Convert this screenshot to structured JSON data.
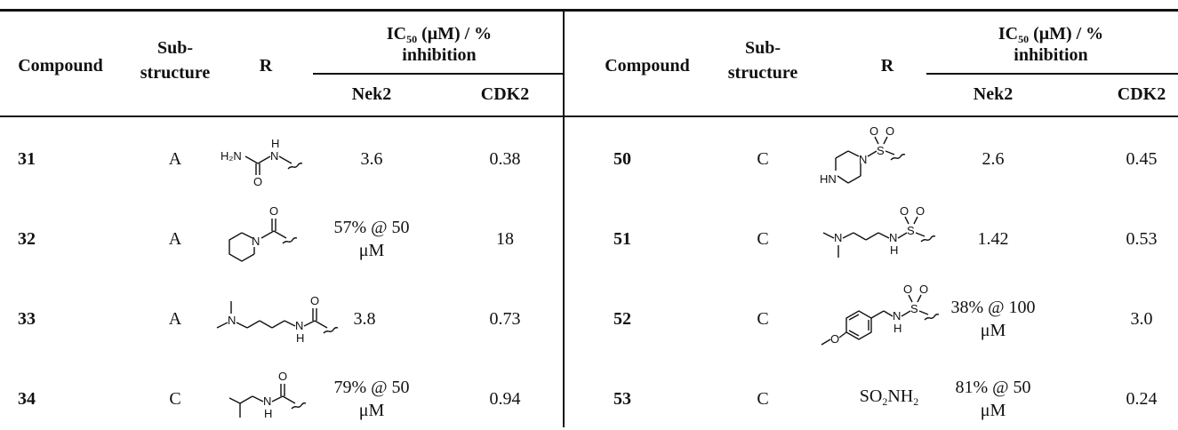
{
  "header": {
    "compound": "Compound",
    "substructure_top": "Sub-",
    "substructure_bottom": "structure",
    "r": "R",
    "ic50_prefix": "IC",
    "ic50_sub": "50",
    "ic50_suffix": " (μM) / %",
    "inhibition": "inhibition",
    "nek2": "Nek2",
    "cdk2": "CDK2"
  },
  "left_rows": [
    {
      "compound": "31",
      "substructure": "A",
      "r_structure": "urea",
      "nek2": "3.6",
      "cdk2": "0.38"
    },
    {
      "compound": "32",
      "substructure": "A",
      "r_structure": "piperidine-amide",
      "nek2_line1": "57% @ 50",
      "nek2_line2": "μM",
      "cdk2": "18"
    },
    {
      "compound": "33",
      "substructure": "A",
      "r_structure": "dimethylaminobutyl-amide",
      "nek2": "3.8",
      "cdk2": "0.73"
    },
    {
      "compound": "34",
      "substructure": "C",
      "r_structure": "isobutyl-amide",
      "nek2_line1": "79% @ 50",
      "nek2_line2": "μM",
      "cdk2": "0.94"
    }
  ],
  "right_rows": [
    {
      "compound": "50",
      "substructure": "C",
      "r_structure": "piperazine-sulfonyl",
      "nek2": "2.6",
      "cdk2": "0.45"
    },
    {
      "compound": "51",
      "substructure": "C",
      "r_structure": "dimethylaminopropyl-sulfonamide",
      "nek2": "1.42",
      "cdk2": "0.53"
    },
    {
      "compound": "52",
      "substructure": "C",
      "r_structure": "methoxybenzyl-sulfonamide",
      "nek2_line1": "38% @ 100",
      "nek2_line2": "μM",
      "cdk2": "3.0"
    },
    {
      "compound": "53",
      "substructure": "C",
      "r_so2": "SO",
      "r_sub1": "2",
      "r_nh": "NH",
      "r_sub2": "2",
      "nek2_line1": "81% @ 50",
      "nek2_line2": "μM",
      "cdk2": "0.24"
    }
  ],
  "atoms": {
    "H2N": "H₂N",
    "H": "H",
    "N": "N",
    "O": "O",
    "S": "S",
    "HN": "HN"
  }
}
